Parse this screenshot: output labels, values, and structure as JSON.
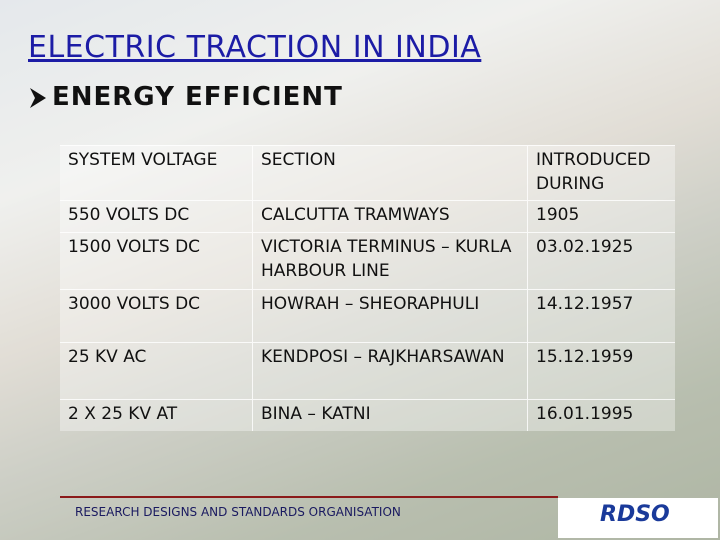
{
  "header": {
    "title": "ELECTRIC TRACTION IN INDIA",
    "subtitle": "ENERGY EFFICIENT"
  },
  "table": {
    "rows": [
      [
        "SYSTEM VOLTAGE",
        "SECTION",
        "INTRODUCED DURING"
      ],
      [
        "550 VOLTS DC",
        "CALCUTTA TRAMWAYS",
        "1905"
      ],
      [
        "1500 VOLTS DC",
        "VICTORIA TERMINUS – KURLA HARBOUR LINE",
        "03.02.1925"
      ],
      [
        "3000 VOLTS DC",
        "HOWRAH – SHEORAPHULI",
        "14.12.1957"
      ],
      [
        "25 KV AC",
        "KENDPOSI – RAJKHARSAWAN",
        "15.12.1959"
      ],
      [
        "2 X 25 KV AT",
        "BINA – KATNI",
        "16.01.1995"
      ]
    ]
  },
  "footer": {
    "text": "RESEARCH DESIGNS AND STANDARDS ORGANISATION"
  },
  "logo": {
    "text": "RDSO"
  }
}
